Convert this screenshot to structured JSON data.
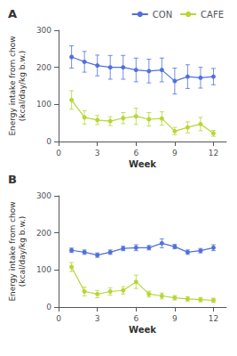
{
  "chart_data": [
    {
      "type": "line",
      "title": "A",
      "x_label": "Week",
      "y_label": "Energy intake from chow\n(kcal/day/kg b.w.)",
      "x": [
        1,
        2,
        3,
        4,
        5,
        6,
        7,
        8,
        9,
        10,
        11,
        12
      ],
      "series": [
        {
          "name": "CON",
          "marker": "circle",
          "values": [
            228,
            215,
            205,
            200,
            200,
            193,
            190,
            193,
            163,
            175,
            172,
            175
          ],
          "errors": [
            30,
            28,
            28,
            32,
            32,
            32,
            32,
            32,
            35,
            32,
            28,
            22
          ]
        },
        {
          "name": "CAFE",
          "marker": "circle",
          "values": [
            112,
            65,
            58,
            55,
            63,
            68,
            60,
            62,
            28,
            38,
            47,
            22
          ],
          "errors": [
            25,
            18,
            12,
            12,
            15,
            22,
            18,
            18,
            10,
            15,
            18,
            8
          ]
        }
      ],
      "xlim": [
        0,
        13
      ],
      "xticks": [
        0,
        3,
        6,
        9,
        12
      ],
      "ylim": [
        0,
        300
      ],
      "yticks": [
        0,
        100,
        200,
        300
      ],
      "grid": false,
      "legend": "upper right"
    },
    {
      "type": "line",
      "title": "B",
      "x_label": "Week",
      "y_label": "Energy intake from chow\n(kcal/day/kg b.w.)",
      "x": [
        1,
        2,
        3,
        4,
        5,
        6,
        7,
        8,
        9,
        10,
        11,
        12
      ],
      "series": [
        {
          "name": "CON",
          "marker": "circle",
          "values": [
            153,
            148,
            140,
            148,
            158,
            160,
            160,
            172,
            163,
            148,
            152,
            160
          ],
          "errors": [
            6,
            6,
            6,
            6,
            6,
            8,
            6,
            12,
            6,
            6,
            6,
            8
          ]
        },
        {
          "name": "CAFE",
          "marker": "circle",
          "values": [
            108,
            42,
            35,
            42,
            45,
            68,
            35,
            30,
            25,
            22,
            20,
            18
          ],
          "errors": [
            12,
            12,
            10,
            10,
            10,
            18,
            8,
            8,
            6,
            6,
            6,
            6
          ]
        }
      ],
      "xlim": [
        0,
        13
      ],
      "xticks": [
        0,
        3,
        6,
        9,
        12
      ],
      "ylim": [
        0,
        300
      ],
      "yticks": [
        0,
        100,
        200,
        300
      ],
      "grid": false
    }
  ]
}
